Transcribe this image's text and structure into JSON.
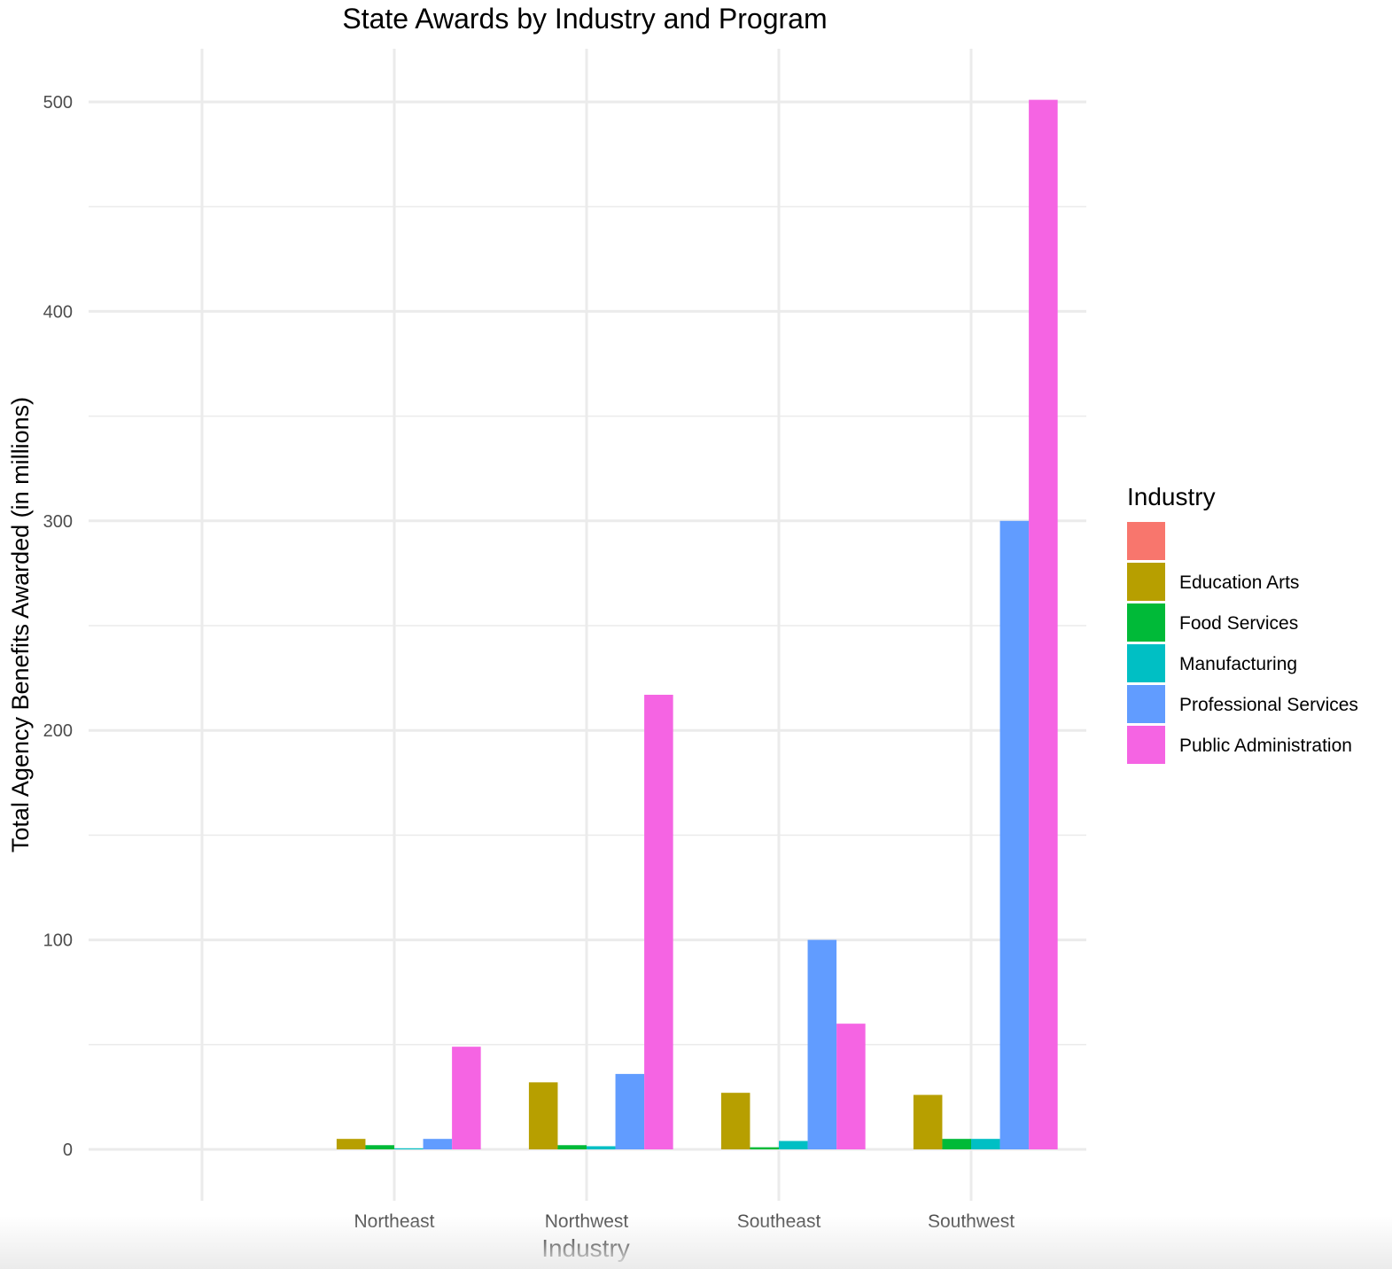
{
  "chart_data": {
    "type": "bar",
    "title": "State Awards by Industry and Program",
    "xlabel": "Industry",
    "ylabel": "Total Agency Benefits Awarded (in millions)",
    "categories": [
      "",
      "Northeast",
      "Northwest",
      "Southeast",
      "Southwest"
    ],
    "ylim": [
      -25,
      525
    ],
    "yticks": [
      0,
      100,
      200,
      300,
      400,
      500
    ],
    "grid": true,
    "legend_title": "Industry",
    "legend_position": "right",
    "series": [
      {
        "name": "",
        "color": "#F8766D",
        "values": [
          null,
          null,
          null,
          null,
          null
        ]
      },
      {
        "name": "Education Arts",
        "color": "#B79F00",
        "values": [
          null,
          5,
          32,
          27,
          26
        ]
      },
      {
        "name": "Food Services",
        "color": "#00BA38",
        "values": [
          null,
          2,
          2,
          1,
          5
        ]
      },
      {
        "name": "Manufacturing",
        "color": "#00BFC4",
        "values": [
          null,
          0.5,
          1.5,
          4,
          5
        ]
      },
      {
        "name": "Professional Services",
        "color": "#619CFF",
        "values": [
          null,
          5,
          36,
          100,
          300
        ]
      },
      {
        "name": "Public Administration",
        "color": "#F564E3",
        "values": [
          null,
          49,
          217,
          60,
          501
        ]
      }
    ]
  }
}
